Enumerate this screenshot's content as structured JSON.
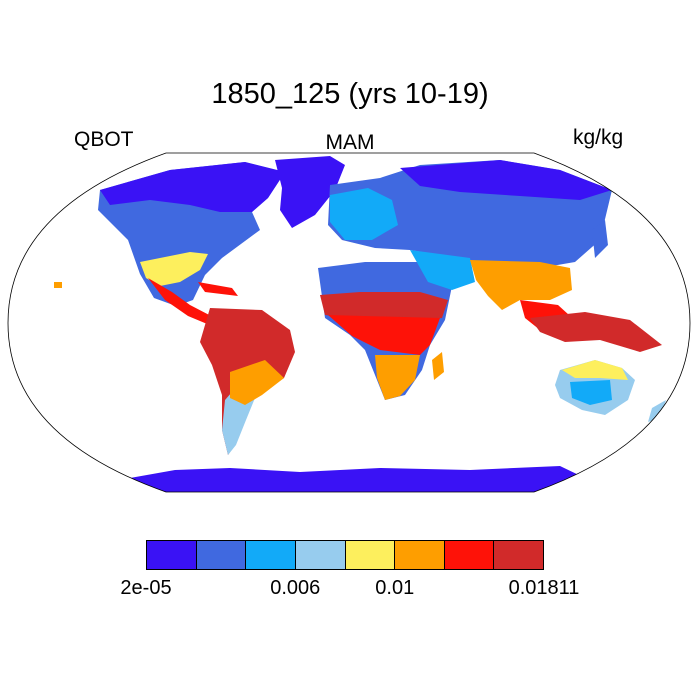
{
  "figure": {
    "title": "1850_125 (yrs 10-19)",
    "left_label": "QBOT",
    "center_label": "MAM",
    "right_label": "kg/kg"
  },
  "colorbar": {
    "colors": [
      "#3a12f5",
      "#4069e0",
      "#12aaf8",
      "#97ccee",
      "#fdef5d",
      "#fe9e00",
      "#fe1208",
      "#d12a2a"
    ],
    "labels": [
      {
        "text": "2e-05",
        "edge_index": 0
      },
      {
        "text": "0.006",
        "edge_index": 3
      },
      {
        "text": "0.01",
        "edge_index": 5
      },
      {
        "text": "0.01811",
        "edge_index": 8
      }
    ]
  },
  "map": {
    "projection": "robinson",
    "variable": "QBOT",
    "season": "MAM"
  }
}
